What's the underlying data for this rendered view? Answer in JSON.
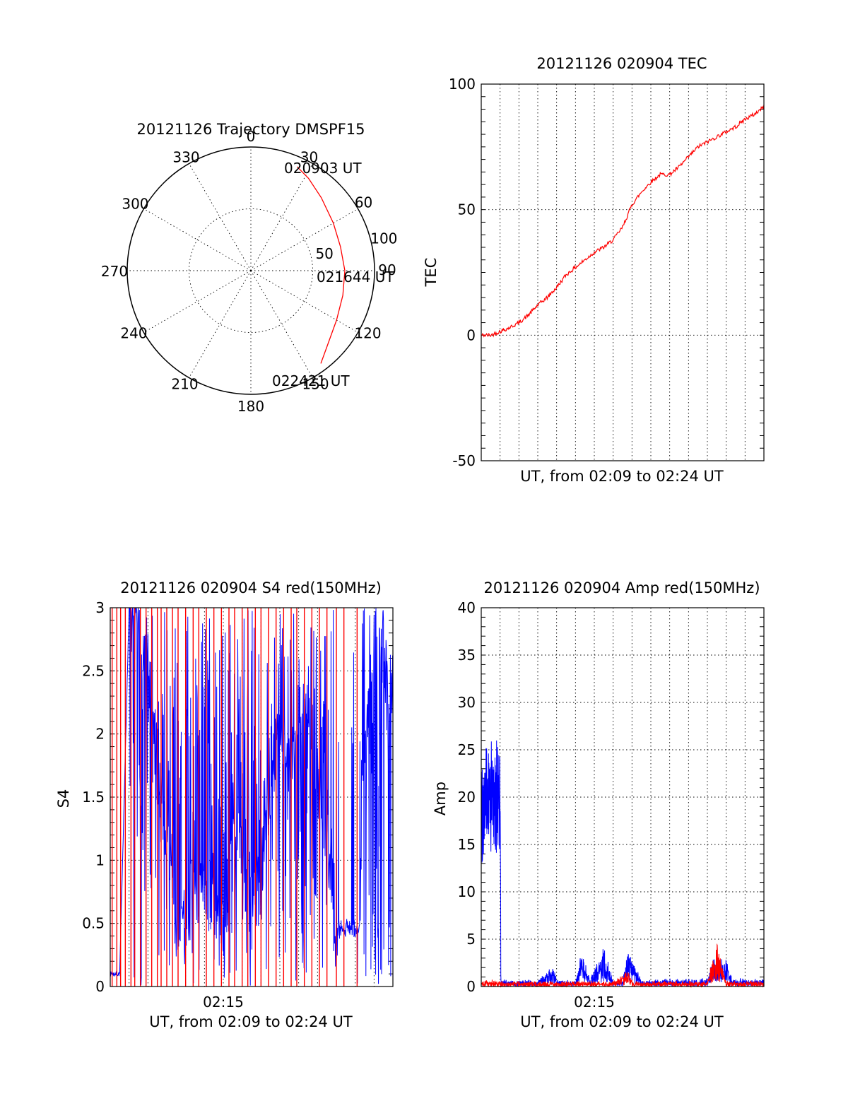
{
  "colors": {
    "red": "#ff0000",
    "blue": "#0000ff",
    "black": "#000000",
    "background": "#ffffff"
  },
  "chart_data": [
    {
      "type": "polar",
      "title": "20121126 Trajectory DMSPF15",
      "angle_labels": [
        "0",
        "30",
        "60",
        "90",
        "120",
        "150",
        "180",
        "210",
        "240",
        "270",
        "300",
        "330"
      ],
      "radial_labels": [
        "50",
        "100"
      ],
      "rlim": [
        0,
        100
      ],
      "series": [
        {
          "color": "red",
          "points": [
            [
              24,
              92
            ],
            [
              32,
              88
            ],
            [
              44,
              82
            ],
            [
              60,
              77
            ],
            [
              75,
              75
            ],
            [
              90,
              76
            ],
            [
              105,
              77
            ],
            [
              120,
              80
            ],
            [
              135,
              87
            ],
            [
              143,
              94
            ]
          ]
        }
      ],
      "annotations": [
        "020903 UT",
        "021644 UT",
        "022421 UT"
      ],
      "grid": true
    },
    {
      "type": "line",
      "title": "20121126 020904 TEC",
      "xlabel": "UT, from 02:09 to 02:24 UT",
      "ylabel": "TEC",
      "ylim": [
        -50,
        100
      ],
      "yticks": [
        "-50",
        "0",
        "50",
        "100"
      ],
      "xlim": [
        0,
        15
      ],
      "grid": true,
      "series": [
        {
          "color": "red",
          "x": [
            0,
            0.5,
            1,
            1.5,
            2,
            2.5,
            3,
            3.5,
            4,
            4.5,
            5,
            5.5,
            6,
            6.5,
            7,
            7.5,
            8,
            8.5,
            9,
            9.5,
            10,
            10.5,
            11,
            11.5,
            12,
            12.5,
            13,
            13.5,
            14,
            14.5,
            15
          ],
          "y": [
            0,
            0,
            1.5,
            3,
            5,
            8,
            12,
            15,
            19,
            24,
            27,
            30,
            33,
            35,
            38,
            43,
            52,
            57,
            61,
            64,
            64,
            67,
            71,
            75,
            77,
            79,
            81,
            83,
            86,
            88,
            91
          ]
        }
      ]
    },
    {
      "type": "line",
      "title": "20121126 020904 S4 red(150MHz)",
      "xlabel": "UT, from 02:09 to 02:24 UT",
      "ylabel": "S4",
      "ylim": [
        0,
        3
      ],
      "yticks": [
        "0",
        "0.5",
        "1",
        "1.5",
        "2",
        "2.5",
        "3"
      ],
      "xlim": [
        0,
        15
      ],
      "xtick_labels": [
        "02:15"
      ],
      "grid": true,
      "series": [
        {
          "color": "blue",
          "x": [
            0,
            0.5,
            1,
            1.5,
            2,
            2.5,
            3,
            3.5,
            4,
            4.5,
            5,
            5.5,
            6,
            6.5,
            7,
            7.5,
            8,
            8.5,
            9,
            9.5,
            10,
            10.5,
            11,
            11.5,
            12,
            12.5,
            13,
            13.5,
            14,
            14.5,
            15
          ],
          "y": [
            0.1,
            0.1,
            3,
            2.8,
            2.5,
            1.8,
            1.2,
            0.5,
            0.45,
            0.6,
            0.8,
            0.7,
            0.3,
            1.4,
            1.0,
            0.55,
            0.9,
            1.5,
            2.2,
            1.8,
            2.0,
            2.3,
            1.6,
            1.2,
            0.5,
            0.45,
            1.5,
            2.0,
            2.8,
            2.6,
            2.3
          ]
        },
        {
          "color": "red",
          "x": [
            0,
            1,
            2,
            3,
            4,
            5,
            6,
            7,
            8,
            9,
            10,
            11,
            12,
            13,
            14,
            15
          ],
          "y": [
            0.1,
            3,
            3,
            3,
            3,
            3,
            3,
            3,
            3,
            3,
            3,
            3,
            3,
            0,
            0,
            0
          ]
        }
      ]
    },
    {
      "type": "line",
      "title": "20121126 020904 Amp red(150MHz)",
      "xlabel": "UT, from 02:09 to 02:24 UT",
      "ylabel": "Amp",
      "ylim": [
        0,
        40
      ],
      "yticks": [
        "0",
        "5",
        "10",
        "15",
        "20",
        "25",
        "30",
        "35",
        "40"
      ],
      "xlim": [
        0,
        15
      ],
      "xtick_labels": [
        "02:15"
      ],
      "grid": true,
      "series": [
        {
          "color": "blue",
          "x": [
            0,
            0.5,
            1,
            1.05,
            2,
            3,
            3.8,
            4,
            5,
            5.3,
            5.8,
            6.5,
            7,
            7.5,
            7.8,
            8.5,
            9,
            10,
            11,
            12,
            12.3,
            13,
            13.3,
            14,
            15
          ],
          "y": [
            19,
            20,
            20,
            0.4,
            0.4,
            0.4,
            1.5,
            0.4,
            0.4,
            2.5,
            0.5,
            3.0,
            0.4,
            0.4,
            2.8,
            0.4,
            0.4,
            0.5,
            0.5,
            0.5,
            2.0,
            2.0,
            0.5,
            0.5,
            0.5
          ]
        },
        {
          "color": "red",
          "x": [
            0,
            0.5,
            1,
            1.05,
            2,
            4,
            6,
            7,
            7.8,
            8,
            10,
            12,
            12.5,
            13,
            15
          ],
          "y": [
            0.3,
            0.4,
            0.4,
            0.3,
            0.3,
            0.3,
            0.3,
            0.3,
            1.2,
            0.3,
            0.3,
            0.3,
            3.5,
            0.3,
            0.3
          ]
        }
      ]
    }
  ]
}
